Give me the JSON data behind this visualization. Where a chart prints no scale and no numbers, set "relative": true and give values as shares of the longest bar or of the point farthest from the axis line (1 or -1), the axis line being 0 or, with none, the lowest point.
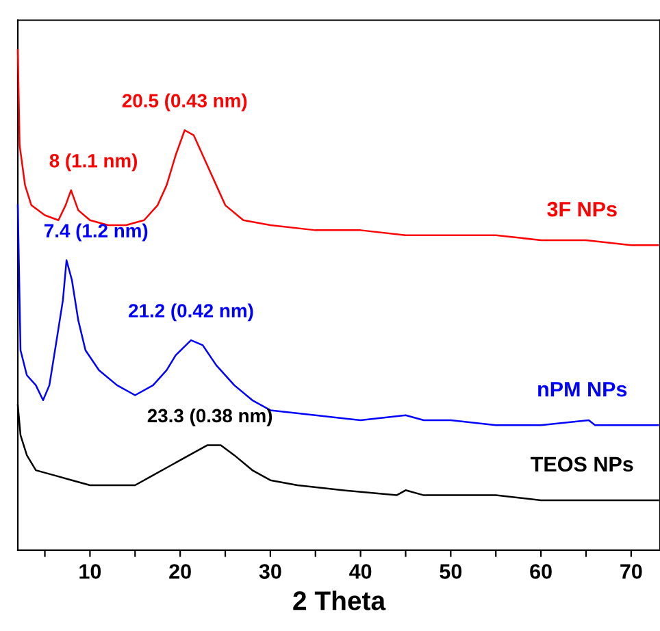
{
  "chart_data": {
    "type": "line",
    "relative": true,
    "xlabel": "2 Theta",
    "xlim": [
      2,
      73.2
    ],
    "xticks": [
      {
        "value": 5,
        "label": null
      },
      10,
      {
        "value": 15,
        "label": null
      },
      20,
      {
        "value": 25,
        "label": null
      },
      30,
      {
        "value": 35,
        "label": null
      },
      40,
      {
        "value": 45,
        "label": null
      },
      50,
      {
        "value": 55,
        "label": null
      },
      60,
      {
        "value": 65,
        "label": null
      },
      70
    ],
    "tick_labels": "x",
    "grid": false,
    "legend": false,
    "marker": "none",
    "line_style": "solid",
    "series": [
      {
        "name": "3F NPs",
        "color": "#ff0000",
        "x": [
          2.0,
          2.2,
          2.8,
          3.5,
          5,
          6.5,
          7.3,
          7.9,
          8.7,
          10,
          12,
          14,
          16,
          17.5,
          18.5,
          19.5,
          20.5,
          21.5,
          22.5,
          24,
          25,
          27,
          30,
          35,
          40,
          45,
          50,
          55,
          60,
          65,
          70,
          73
        ],
        "values": [
          1.0,
          0.81,
          0.73,
          0.69,
          0.67,
          0.66,
          0.69,
          0.72,
          0.68,
          0.66,
          0.65,
          0.65,
          0.66,
          0.69,
          0.73,
          0.79,
          0.84,
          0.83,
          0.79,
          0.73,
          0.69,
          0.66,
          0.65,
          0.64,
          0.64,
          0.63,
          0.63,
          0.63,
          0.62,
          0.62,
          0.61,
          0.61
        ]
      },
      {
        "name": "nPM NPs",
        "color": "#0000ff",
        "x": [
          2.0,
          2.3,
          3,
          4,
          4.8,
          5.5,
          6.3,
          7,
          7.4,
          8,
          8.7,
          9.5,
          11,
          13,
          15,
          17,
          18.5,
          19.5,
          21.2,
          22.5,
          24,
          26,
          28,
          30,
          35,
          40,
          45,
          47,
          50,
          55,
          60,
          65.3,
          66,
          70,
          73
        ],
        "values": [
          0.69,
          0.4,
          0.35,
          0.33,
          0.3,
          0.33,
          0.42,
          0.5,
          0.58,
          0.54,
          0.46,
          0.4,
          0.36,
          0.33,
          0.31,
          0.33,
          0.36,
          0.39,
          0.42,
          0.41,
          0.37,
          0.33,
          0.3,
          0.28,
          0.27,
          0.26,
          0.27,
          0.26,
          0.26,
          0.25,
          0.25,
          0.26,
          0.25,
          0.25,
          0.25
        ]
      },
      {
        "name": "TEOS NPs",
        "color": "#000000",
        "x": [
          2.0,
          2.3,
          3,
          4,
          6,
          8,
          10,
          12,
          15,
          17,
          19,
          21,
          23,
          24.5,
          26,
          28,
          30,
          33,
          38,
          44,
          45,
          47,
          55,
          60,
          65,
          70,
          73
        ],
        "values": [
          0.29,
          0.23,
          0.19,
          0.16,
          0.15,
          0.14,
          0.13,
          0.13,
          0.13,
          0.15,
          0.17,
          0.19,
          0.21,
          0.21,
          0.19,
          0.16,
          0.14,
          0.13,
          0.12,
          0.11,
          0.12,
          0.11,
          0.11,
          0.1,
          0.1,
          0.1,
          0.1
        ]
      }
    ],
    "annotations": [
      {
        "text": "20.5 (0.43 nm)",
        "x": 20.5,
        "y": 0.84
      },
      {
        "text": "8 (1.1 nm)",
        "x": 8,
        "y": 0.72
      },
      {
        "text": "7.4 (1.2 nm)",
        "x": 7.4,
        "y": 0.58
      },
      {
        "text": "21.2 (0.42 nm)",
        "x": 21.2,
        "y": 0.42
      },
      {
        "text": "23.3 (0.38 nm)",
        "x": 23.3,
        "y": 0.21
      }
    ]
  }
}
